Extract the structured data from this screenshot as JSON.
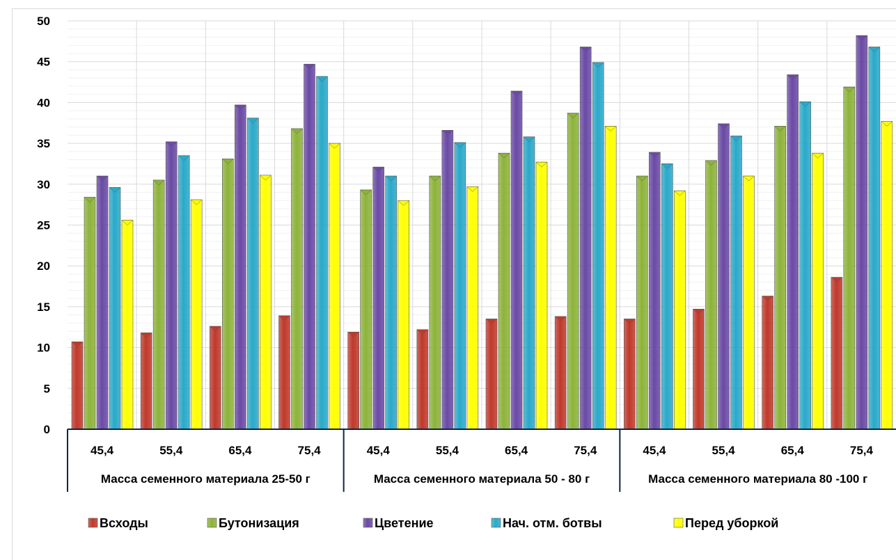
{
  "chart_data": {
    "type": "bar",
    "title": "",
    "xlabel": "",
    "ylabel": "",
    "ylim": [
      0,
      50
    ],
    "yticks": [
      0,
      5,
      10,
      15,
      20,
      25,
      30,
      35,
      40,
      45,
      50
    ],
    "grid": true,
    "legend_position": "bottom",
    "groups": [
      {
        "label": "Масса семенного материала 25-50 г",
        "categories": [
          "45,4",
          "55,4",
          "65,4",
          "75,4"
        ]
      },
      {
        "label": "Масса семенного материала 50 - 80 г",
        "categories": [
          "45,4",
          "55,4",
          "65,4",
          "75,4"
        ]
      },
      {
        "label": "Масса семенного материала 80 -100 г",
        "categories": [
          "45,4",
          "55,4",
          "65,4",
          "75,4"
        ]
      }
    ],
    "series": [
      {
        "name": "Всходы",
        "color": "#c0392b",
        "values": [
          10.7,
          11.8,
          12.6,
          13.9,
          11.9,
          12.2,
          13.5,
          13.8,
          13.5,
          14.7,
          16.3,
          18.6
        ]
      },
      {
        "name": "Бутонизация",
        "color": "#8db33a",
        "values": [
          28.4,
          30.5,
          33.1,
          36.8,
          29.3,
          31.0,
          33.8,
          38.7,
          31.0,
          32.9,
          37.1,
          41.9
        ]
      },
      {
        "name": "Цветение",
        "color": "#6a4aa5",
        "values": [
          31.0,
          35.2,
          39.7,
          44.7,
          32.1,
          36.6,
          41.4,
          46.8,
          33.9,
          37.4,
          43.4,
          48.2
        ]
      },
      {
        "name": "Нач. отм. ботвы",
        "color": "#2aa9c9",
        "values": [
          29.6,
          33.5,
          38.1,
          43.2,
          31.0,
          35.1,
          35.8,
          44.9,
          32.5,
          35.9,
          40.1,
          46.8
        ]
      },
      {
        "name": "Перед уборкой",
        "color": "#ffff00",
        "values": [
          25.6,
          28.1,
          31.1,
          35.0,
          28.0,
          29.7,
          32.7,
          37.1,
          29.2,
          31.0,
          33.8,
          37.7
        ]
      }
    ]
  }
}
